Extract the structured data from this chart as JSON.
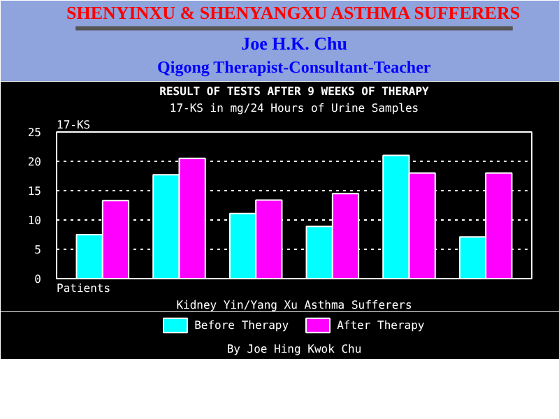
{
  "chart_data": {
    "type": "bar",
    "title": "SHENYINXU & SHENYANGXU ASTHMA SUFFERERS",
    "subtitle": "Joe H.K. Chu",
    "annotations": [
      "Qigong Therapist-Consultant-Teacher",
      "RESULT OF TESTS AFTER 9 WEEKS OF THERAPY",
      "17-KS in mg/24 Hours of Urine Samples",
      "Kidney Yin/Yang Xu Asthma Sufferers",
      "By Joe Hing Kwok Chu"
    ],
    "ylabel": "17-KS",
    "xlabel": "Patients",
    "categories": [
      null,
      null,
      null,
      null,
      null,
      null
    ],
    "series": [
      {
        "name": "Before Therapy",
        "color": "#00ffff",
        "values": [
          7.5,
          17.7,
          11.1,
          8.9,
          21.0,
          7.1
        ]
      },
      {
        "name": "After Therapy",
        "color": "#ff00ff",
        "values": [
          13.3,
          20.5,
          13.4,
          14.5,
          18.0,
          18.0
        ]
      }
    ],
    "ylim": [
      0,
      25
    ],
    "yticks": [
      0,
      5,
      10,
      15,
      20,
      25
    ],
    "grid": "y",
    "legend": "bottom"
  }
}
